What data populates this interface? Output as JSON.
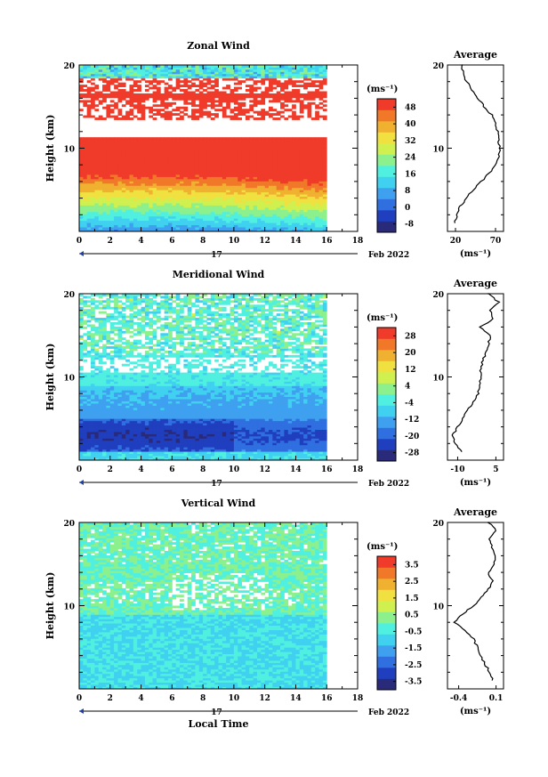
{
  "chart_data": [
    {
      "type": "heatmap",
      "title": "Zonal Wind",
      "ylabel": "Height (km)",
      "x_ticks": [
        "0",
        "2",
        "4",
        "6",
        "8",
        "10",
        "12",
        "14",
        "16",
        "18"
      ],
      "y_ticks": [
        "20",
        "10"
      ],
      "date_label": "17",
      "month_label": "Feb 2022",
      "xlabel": "",
      "colorbar": {
        "unit": "(ms⁻¹)",
        "ticks": [
          "48",
          "40",
          "32",
          "24",
          "16",
          "8",
          "0",
          "-8"
        ],
        "min": -8,
        "max": 52
      },
      "average": {
        "title": "Average",
        "x_ticks": [
          "20",
          "70"
        ],
        "unit": "(ms⁻¹)",
        "y_ticks": [
          "20",
          "10"
        ],
        "xlim": [
          10,
          80
        ],
        "height": [
          1,
          2,
          3,
          4,
          5,
          6,
          7,
          8,
          9,
          10,
          11,
          12,
          13,
          14,
          15,
          16,
          17,
          18,
          19,
          20
        ],
        "value": [
          18,
          22,
          26,
          33,
          42,
          52,
          62,
          70,
          74,
          75,
          74,
          73,
          70,
          65,
          56,
          48,
          40,
          34,
          30,
          28
        ]
      }
    },
    {
      "type": "heatmap",
      "title": "Meridional Wind",
      "ylabel": "Height (km)",
      "x_ticks": [
        "0",
        "2",
        "4",
        "6",
        "8",
        "10",
        "12",
        "14",
        "16",
        "18"
      ],
      "y_ticks": [
        "20",
        "10"
      ],
      "date_label": "17",
      "month_label": "Feb 2022",
      "xlabel": "",
      "colorbar": {
        "unit": "(ms⁻¹)",
        "ticks": [
          "28",
          "20",
          "12",
          "4",
          "-4",
          "-12",
          "-20",
          "-28"
        ],
        "min": -32,
        "max": 32
      },
      "average": {
        "title": "Average",
        "x_ticks": [
          "-10",
          "5"
        ],
        "unit": "(ms⁻¹)",
        "y_ticks": [
          "20",
          "10"
        ],
        "xlim": [
          -14,
          8
        ],
        "height": [
          1,
          2,
          3,
          4,
          5,
          6,
          7,
          8,
          9,
          10,
          11,
          12,
          13,
          14,
          15,
          16,
          17,
          18,
          19,
          20
        ],
        "value": [
          -8,
          -11,
          -12,
          -10,
          -8,
          -6,
          -4,
          -2,
          -1,
          -1,
          -1,
          0,
          1,
          2,
          3,
          -1,
          4,
          3,
          6,
          2
        ]
      }
    },
    {
      "type": "heatmap",
      "title": "Vertical Wind",
      "ylabel": "Height (km)",
      "x_ticks": [
        "0",
        "2",
        "4",
        "6",
        "8",
        "10",
        "12",
        "14",
        "16",
        "18"
      ],
      "y_ticks": [
        "20",
        "10"
      ],
      "date_label": "17",
      "month_label": "Feb 2022",
      "xlabel": "Local Time",
      "colorbar": {
        "unit": "(ms⁻¹)",
        "ticks": [
          "3.5",
          "2.5",
          "1.5",
          "0.5",
          "-0.5",
          "-1.5",
          "-2.5",
          "-3.5"
        ],
        "min": -4,
        "max": 4
      },
      "average": {
        "title": "Average",
        "x_ticks": [
          "-0.4",
          "0.1"
        ],
        "unit": "(ms⁻¹)",
        "y_ticks": [
          "20",
          "10"
        ],
        "xlim": [
          -0.55,
          0.2
        ],
        "height": [
          1,
          2,
          3,
          4,
          5,
          6,
          7,
          8,
          9,
          10,
          11,
          12,
          13,
          14,
          15,
          16,
          17,
          18,
          19,
          20
        ],
        "value": [
          0.05,
          0.02,
          -0.05,
          -0.1,
          -0.15,
          -0.2,
          -0.3,
          -0.45,
          -0.35,
          -0.2,
          -0.1,
          0.0,
          0.05,
          0.0,
          0.08,
          0.1,
          0.05,
          0.0,
          0.1,
          0.0
        ]
      }
    }
  ]
}
